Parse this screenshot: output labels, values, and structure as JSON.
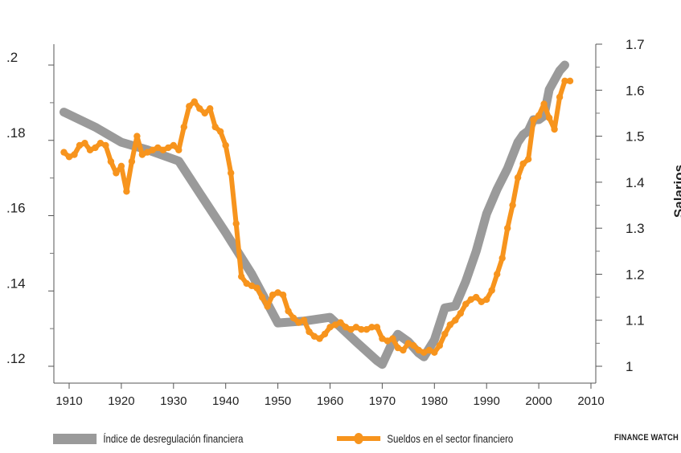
{
  "chart_data": {
    "type": "line",
    "title": "",
    "xlabel": "",
    "ylabel_left": "",
    "ylabel_right": "Salarios",
    "x_ticks": [
      1910,
      1920,
      1930,
      1940,
      1950,
      1960,
      1970,
      1980,
      1990,
      2000,
      2010
    ],
    "x_range": [
      1908,
      2012
    ],
    "y_left_ticks": [
      ".12",
      ".14",
      ".16",
      ".18",
      ".2"
    ],
    "y_left_range": [
      0.12,
      0.2
    ],
    "y_right_ticks": [
      "1",
      "1.1",
      "1.2",
      "1.3",
      "1.4",
      "1.5",
      "1.6",
      "1.7"
    ],
    "y_right_range": [
      1.0,
      1.7
    ],
    "grid": false,
    "legend_position": "bottom",
    "series": [
      {
        "name": "Índice de desregulación financiera",
        "axis": "left",
        "color": "#9a9a9a",
        "points": [
          [
            1909,
            0.1875
          ],
          [
            1915,
            0.1835
          ],
          [
            1920,
            0.1795
          ],
          [
            1925,
            0.1775
          ],
          [
            1931,
            0.1745
          ],
          [
            1935,
            0.166
          ],
          [
            1940,
            0.1555
          ],
          [
            1945,
            0.1445
          ],
          [
            1950,
            0.1315
          ],
          [
            1955,
            0.132
          ],
          [
            1960,
            0.133
          ],
          [
            1965,
            0.1265
          ],
          [
            1969,
            0.1215
          ],
          [
            1970,
            0.1205
          ],
          [
            1972,
            0.1265
          ],
          [
            1973,
            0.1285
          ],
          [
            1975,
            0.1265
          ],
          [
            1977,
            0.1235
          ],
          [
            1978,
            0.1225
          ],
          [
            1980,
            0.127
          ],
          [
            1982,
            0.1355
          ],
          [
            1984,
            0.136
          ],
          [
            1986,
            0.1425
          ],
          [
            1988,
            0.1505
          ],
          [
            1990,
            0.1605
          ],
          [
            1992,
            0.167
          ],
          [
            1994,
            0.1725
          ],
          [
            1996,
            0.1795
          ],
          [
            1997,
            0.1815
          ],
          [
            1998,
            0.1825
          ],
          [
            1999,
            0.1855
          ],
          [
            2000,
            0.1855
          ],
          [
            2001,
            0.1865
          ],
          [
            2002,
            0.1935
          ],
          [
            2004,
            0.1985
          ],
          [
            2005,
            0.2
          ]
        ]
      },
      {
        "name": "Sueldos en el sector financiero",
        "axis": "right",
        "color": "#f7941d",
        "points": [
          [
            1909,
            1.465
          ],
          [
            1910,
            1.455
          ],
          [
            1911,
            1.46
          ],
          [
            1912,
            1.48
          ],
          [
            1913,
            1.485
          ],
          [
            1914,
            1.47
          ],
          [
            1915,
            1.475
          ],
          [
            1916,
            1.485
          ],
          [
            1917,
            1.48
          ],
          [
            1918,
            1.445
          ],
          [
            1919,
            1.42
          ],
          [
            1920,
            1.435
          ],
          [
            1921,
            1.38
          ],
          [
            1922,
            1.445
          ],
          [
            1923,
            1.5
          ],
          [
            1924,
            1.46
          ],
          [
            1925,
            1.465
          ],
          [
            1926,
            1.47
          ],
          [
            1927,
            1.475
          ],
          [
            1928,
            1.47
          ],
          [
            1929,
            1.475
          ],
          [
            1930,
            1.48
          ],
          [
            1931,
            1.47
          ],
          [
            1932,
            1.52
          ],
          [
            1933,
            1.565
          ],
          [
            1934,
            1.575
          ],
          [
            1935,
            1.56
          ],
          [
            1936,
            1.55
          ],
          [
            1937,
            1.56
          ],
          [
            1938,
            1.52
          ],
          [
            1939,
            1.51
          ],
          [
            1940,
            1.48
          ],
          [
            1941,
            1.42
          ],
          [
            1942,
            1.31
          ],
          [
            1943,
            1.195
          ],
          [
            1944,
            1.18
          ],
          [
            1945,
            1.175
          ],
          [
            1946,
            1.17
          ],
          [
            1947,
            1.15
          ],
          [
            1948,
            1.13
          ],
          [
            1949,
            1.155
          ],
          [
            1950,
            1.16
          ],
          [
            1951,
            1.155
          ],
          [
            1952,
            1.12
          ],
          [
            1953,
            1.105
          ],
          [
            1954,
            1.095
          ],
          [
            1955,
            1.1
          ],
          [
            1956,
            1.075
          ],
          [
            1957,
            1.065
          ],
          [
            1958,
            1.06
          ],
          [
            1959,
            1.07
          ],
          [
            1960,
            1.085
          ],
          [
            1961,
            1.09
          ],
          [
            1962,
            1.095
          ],
          [
            1963,
            1.085
          ],
          [
            1964,
            1.08
          ],
          [
            1965,
            1.085
          ],
          [
            1966,
            1.08
          ],
          [
            1967,
            1.08
          ],
          [
            1968,
            1.085
          ],
          [
            1969,
            1.085
          ],
          [
            1970,
            1.06
          ],
          [
            1971,
            1.055
          ],
          [
            1972,
            1.06
          ],
          [
            1973,
            1.04
          ],
          [
            1974,
            1.035
          ],
          [
            1975,
            1.05
          ],
          [
            1976,
            1.045
          ],
          [
            1977,
            1.035
          ],
          [
            1978,
            1.03
          ],
          [
            1979,
            1.035
          ],
          [
            1980,
            1.03
          ],
          [
            1981,
            1.045
          ],
          [
            1982,
            1.07
          ],
          [
            1983,
            1.09
          ],
          [
            1984,
            1.1
          ],
          [
            1985,
            1.115
          ],
          [
            1986,
            1.135
          ],
          [
            1987,
            1.145
          ],
          [
            1988,
            1.15
          ],
          [
            1989,
            1.14
          ],
          [
            1990,
            1.145
          ],
          [
            1991,
            1.165
          ],
          [
            1992,
            1.2
          ],
          [
            1993,
            1.235
          ],
          [
            1994,
            1.3
          ],
          [
            1995,
            1.35
          ],
          [
            1996,
            1.41
          ],
          [
            1997,
            1.44
          ],
          [
            1998,
            1.45
          ],
          [
            1999,
            1.535
          ],
          [
            2000,
            1.545
          ],
          [
            2001,
            1.57
          ],
          [
            2002,
            1.54
          ],
          [
            2003,
            1.515
          ],
          [
            2004,
            1.585
          ],
          [
            2005,
            1.62
          ],
          [
            2006,
            1.62
          ]
        ]
      }
    ]
  },
  "legend": {
    "items": [
      {
        "label": "Índice de desregulación financiera",
        "color": "#9a9a9a"
      },
      {
        "label": "Sueldos en el sector financiero",
        "color": "#f7941d"
      }
    ]
  },
  "source_label": "FINANCE WATCH"
}
